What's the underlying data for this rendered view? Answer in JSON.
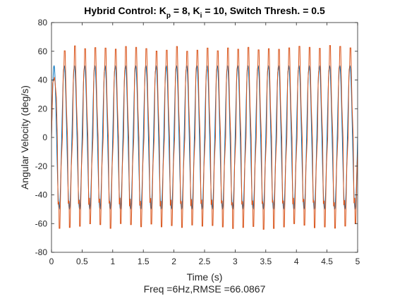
{
  "chart_data": {
    "type": "line",
    "title": {
      "part1": "Hybrid Control: K",
      "sub1": "p",
      "part2": " = 8, K",
      "sub2": "i",
      "part3": " = 10, Switch Thresh. = 0.5"
    },
    "xlabel": "Time (s)",
    "ylabel": "Angular Velocity (deg/s)",
    "footer": "Freq =6Hz,RMSE =66.0867",
    "xlim": [
      0,
      5
    ],
    "ylim": [
      -80,
      80
    ],
    "xticks": [
      0,
      0.5,
      1,
      1.5,
      2,
      2.5,
      3,
      3.5,
      4,
      4.5,
      5
    ],
    "xtick_labels": [
      "0",
      "0.5",
      "1",
      "1.5",
      "2",
      "2.5",
      "3",
      "3.5",
      "4",
      "4.5",
      "5"
    ],
    "yticks": [
      -80,
      -60,
      -40,
      -20,
      0,
      20,
      40,
      60,
      80
    ],
    "ytick_labels": [
      "-80",
      "-60",
      "-40",
      "-20",
      "0",
      "20",
      "40",
      "60",
      "80"
    ],
    "grid": false,
    "box": true,
    "series": [
      {
        "role": "reference",
        "color": "#0072BD",
        "shape": "sinusoid",
        "amplitude": 50,
        "frequency_hz": 6,
        "phase_rad": 0
      },
      {
        "role": "response",
        "color": "#D95319",
        "shape": "stepped-oscillation",
        "frequency_hz": 6,
        "peak": 64,
        "trough": -64,
        "shoulder": 45,
        "approx_points": [
          [
            0,
            0
          ],
          [
            0.02,
            38
          ],
          [
            0.04,
            40
          ],
          [
            0.06,
            42
          ],
          [
            0.08,
            28
          ],
          [
            0.12,
            -20
          ],
          [
            0.14,
            -45
          ],
          [
            0.16,
            -45
          ],
          [
            0.2,
            40
          ],
          [
            0.22,
            62
          ],
          [
            0.24,
            62
          ],
          [
            0.26,
            62
          ],
          [
            0.3,
            0
          ],
          [
            0.32,
            -55
          ],
          [
            0.34,
            -63
          ],
          [
            0.36,
            -63
          ]
        ]
      }
    ]
  }
}
